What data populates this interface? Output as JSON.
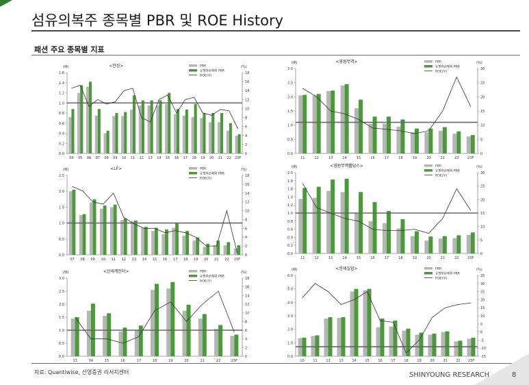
{
  "page": {
    "title": "섬유의복주 종목별 PBR 및 ROE History",
    "subtitle": "패션 주요 종목별 지표",
    "source": "자료: Quantiwise, 신영증권 리서치센터",
    "brand": "SHINYOUNG RESEARCH",
    "page_number": "8"
  },
  "colors": {
    "pbr": "#b5b5b5",
    "adj_pbr": "#4a9a3a",
    "roe": "#333333",
    "ref_line": "#666666"
  },
  "chart_data": [
    {
      "type": "bar",
      "title": "<한섬>",
      "unit_left": "(배)",
      "unit_right": "(%)",
      "categories": [
        "04",
        "05",
        "06",
        "07",
        "08",
        "09",
        "10",
        "11",
        "12",
        "13",
        "14",
        "15",
        "16",
        "17",
        "18",
        "19",
        "20",
        "21",
        "22",
        "23F"
      ],
      "series": [
        {
          "name": "PBR",
          "values": [
            0.72,
            1.2,
            1.32,
            0.75,
            0.4,
            0.74,
            0.74,
            0.87,
            0.95,
            0.95,
            0.95,
            0.98,
            0.78,
            0.75,
            0.72,
            0.7,
            0.62,
            0.62,
            0.45,
            0.35
          ]
        },
        {
          "name": "유형자산제외 PBR",
          "values": [
            0.88,
            1.35,
            1.42,
            0.88,
            0.45,
            0.8,
            0.82,
            1.15,
            1.05,
            1.05,
            1.05,
            1.2,
            0.88,
            0.87,
            0.98,
            0.8,
            0.8,
            0.8,
            0.6,
            0.38
          ]
        },
        {
          "name": "ROE(우)",
          "axis": "right",
          "values": [
            14.5,
            15.2,
            10.5,
            12,
            11,
            11.5,
            14,
            14.5,
            8,
            7,
            12,
            13,
            9,
            12,
            12.5,
            9,
            8.5,
            9.8,
            9.5,
            5.5
          ]
        }
      ],
      "ylim": [
        0,
        1.6
      ],
      "yticks": [
        "0.0",
        "0.2",
        "0.4",
        "0.6",
        "0.8",
        "1.0",
        "1.2",
        "1.4",
        "1.6"
      ],
      "ylim_right": [
        0,
        18
      ],
      "yticks_right": [
        "0",
        "2",
        "4",
        "6",
        "8",
        "10",
        "12",
        "14",
        "16",
        "18"
      ],
      "reference_line": 1.0
    },
    {
      "type": "bar",
      "title": "<영원무역>",
      "unit_left": "(배)",
      "unit_right": "(%)",
      "categories": [
        "11",
        "12",
        "13",
        "14",
        "15",
        "16",
        "17",
        "18",
        "19",
        "20",
        "21",
        "22",
        "23F"
      ],
      "series": [
        {
          "name": "PBR",
          "values": [
            2.05,
            2.05,
            2.2,
            2.4,
            1.6,
            1.05,
            1.05,
            0.95,
            0.75,
            0.75,
            0.8,
            0.7,
            0.6
          ]
        },
        {
          "name": "유형자산제외 PBR",
          "values": [
            2.07,
            2.1,
            2.22,
            2.45,
            1.9,
            1.3,
            1.3,
            1.2,
            0.88,
            0.88,
            0.93,
            0.78,
            0.65
          ]
        },
        {
          "name": "ROE(우)",
          "axis": "right",
          "values": [
            23,
            20,
            15,
            14,
            12,
            9,
            8.5,
            8,
            7,
            8,
            15,
            27,
            16.5
          ]
        }
      ],
      "ylim": [
        0,
        3.0
      ],
      "yticks": [
        "0.0",
        "0.5",
        "1.0",
        "1.5",
        "2.0",
        "2.5",
        "3.0"
      ],
      "ylim_right": [
        0,
        30
      ],
      "yticks_right": [
        "0",
        "5",
        "10",
        "15",
        "20",
        "25",
        "30"
      ],
      "reference_line": 1.1
    },
    {
      "type": "bar",
      "title": "<LF>",
      "unit_left": "(배)",
      "unit_right": "(%)",
      "categories": [
        "07",
        "08",
        "09",
        "10",
        "11",
        "12",
        "13",
        "14",
        "15",
        "16",
        "17",
        "18",
        "19",
        "20",
        "21",
        "22",
        "23F"
      ],
      "series": [
        {
          "name": "PBR",
          "values": [
            2.0,
            1.25,
            1.65,
            1.45,
            1.5,
            1.1,
            1.05,
            0.85,
            0.75,
            0.65,
            0.85,
            0.6,
            0.45,
            0.25,
            0.3,
            0.3,
            0.2
          ]
        },
        {
          "name": "유형자산제외 PBR",
          "values": [
            2.05,
            1.28,
            1.75,
            1.55,
            1.58,
            1.15,
            1.08,
            0.88,
            0.85,
            0.8,
            1.0,
            0.75,
            0.55,
            0.35,
            0.45,
            0.4,
            0.3
          ]
        },
        {
          "name": "ROE(우)",
          "axis": "right",
          "values": [
            15.5,
            14.5,
            12,
            11.5,
            14,
            8.5,
            7,
            6,
            6,
            5,
            5.5,
            5,
            4,
            2,
            2,
            10,
            0.5
          ]
        }
      ],
      "ylim": [
        0,
        2.5
      ],
      "yticks": [
        "0.0",
        "0.5",
        "1.0",
        "1.5",
        "2.0",
        "2.5"
      ],
      "ylim_right": [
        0,
        18
      ],
      "yticks_right": [
        "0",
        "2",
        "4",
        "6",
        "8",
        "10",
        "12",
        "14",
        "16",
        "18"
      ],
      "reference_line": 1.0
    },
    {
      "type": "bar",
      "title": "<영원무역홀딩스>",
      "unit_left": "(배)",
      "unit_right": "(%)",
      "categories": [
        "11",
        "12",
        "13",
        "14",
        "15",
        "16",
        "17",
        "18",
        "19",
        "20",
        "21",
        "22",
        "23F"
      ],
      "series": [
        {
          "name": "PBR",
          "values": [
            1.35,
            1.38,
            1.55,
            1.52,
            1.0,
            0.8,
            0.75,
            0.62,
            0.43,
            0.32,
            0.37,
            0.38,
            0.46
          ]
        },
        {
          "name": "유형자산제외 PBR",
          "values": [
            1.62,
            1.65,
            1.83,
            1.85,
            1.52,
            1.27,
            1.05,
            0.85,
            0.55,
            0.42,
            0.43,
            0.45,
            0.52
          ]
        },
        {
          "name": "ROE(우)",
          "axis": "right",
          "values": [
            26,
            17,
            15,
            13,
            12,
            9,
            8.5,
            8.5,
            9,
            7.5,
            13,
            24,
            16
          ]
        }
      ],
      "ylim": [
        0,
        2.0
      ],
      "yticks": [
        "0.0",
        "0.2",
        "0.4",
        "0.6",
        "0.8",
        "1.0",
        "1.2",
        "1.4",
        "1.6",
        "1.8",
        "2.0"
      ],
      "ylim_right": [
        0,
        30
      ],
      "yticks_right": [
        "0",
        "5",
        "10",
        "15",
        "20",
        "25",
        "30"
      ],
      "reference_line": 1.0
    },
    {
      "type": "bar",
      "title": "<신세계인터>",
      "unit_left": "(배)",
      "unit_right": "(%)",
      "categories": [
        "13",
        "14",
        "15",
        "16",
        "17",
        "18",
        "19",
        "20",
        "21",
        "22",
        "23F"
      ],
      "series": [
        {
          "name": "PBR",
          "values": [
            1.45,
            1.75,
            1.55,
            0.95,
            1.0,
            2.55,
            2.6,
            1.75,
            1.45,
            1.05,
            0.78
          ]
        },
        {
          "name": "유형자산제외 PBR",
          "values": [
            1.5,
            2.02,
            1.65,
            1.1,
            1.18,
            2.78,
            2.85,
            1.98,
            1.62,
            1.2,
            0.83
          ]
        },
        {
          "name": "ROE(우)",
          "axis": "right",
          "values": [
            9,
            4,
            4,
            3,
            4.5,
            10.5,
            12.5,
            8,
            12,
            15,
            5.5
          ]
        }
      ],
      "ylim": [
        0,
        3.0
      ],
      "yticks": [
        "0.0",
        "0.5",
        "1.0",
        "1.5",
        "2.0",
        "2.5",
        "3.0"
      ],
      "ylim_right": [
        0,
        18
      ],
      "yticks_right": [
        "0",
        "2",
        "4",
        "6",
        "8",
        "10",
        "12",
        "14",
        "16",
        "18"
      ],
      "reference_line": 1.0
    },
    {
      "type": "bar",
      "title": "<한세실업>",
      "unit_left": "(배)",
      "unit_right": "(%)",
      "categories": [
        "10",
        "11",
        "12",
        "13",
        "14",
        "15",
        "16",
        "17",
        "18",
        "19",
        "20",
        "21",
        "22",
        "23F"
      ],
      "series": [
        {
          "name": "PBR",
          "values": [
            1.35,
            1.5,
            2.8,
            2.85,
            4.8,
            4.9,
            2.15,
            2.2,
            1.9,
            1.6,
            1.6,
            1.8,
            1.1,
            1.3
          ]
        },
        {
          "name": "유형자산제외 PBR",
          "values": [
            1.38,
            1.55,
            2.9,
            2.9,
            5.0,
            5.0,
            2.8,
            2.65,
            2.05,
            1.75,
            1.68,
            1.85,
            1.15,
            1.38
          ]
        },
        {
          "name": "ROE(우)",
          "axis": "right",
          "values": [
            21,
            30,
            25,
            17,
            20,
            25,
            7,
            6,
            -13,
            -5,
            9,
            15,
            17,
            18
          ]
        }
      ],
      "ylim": [
        0,
        6.0
      ],
      "yticks": [
        "0.0",
        "1.0",
        "2.0",
        "3.0",
        "4.0",
        "5.0",
        "6.0"
      ],
      "ylim_right": [
        -15,
        35
      ],
      "yticks_right": [
        "-15",
        "-10",
        "-5",
        "0",
        "5",
        "10",
        "15",
        "20",
        "25",
        "30",
        "35"
      ],
      "reference_line": 0.7
    }
  ]
}
